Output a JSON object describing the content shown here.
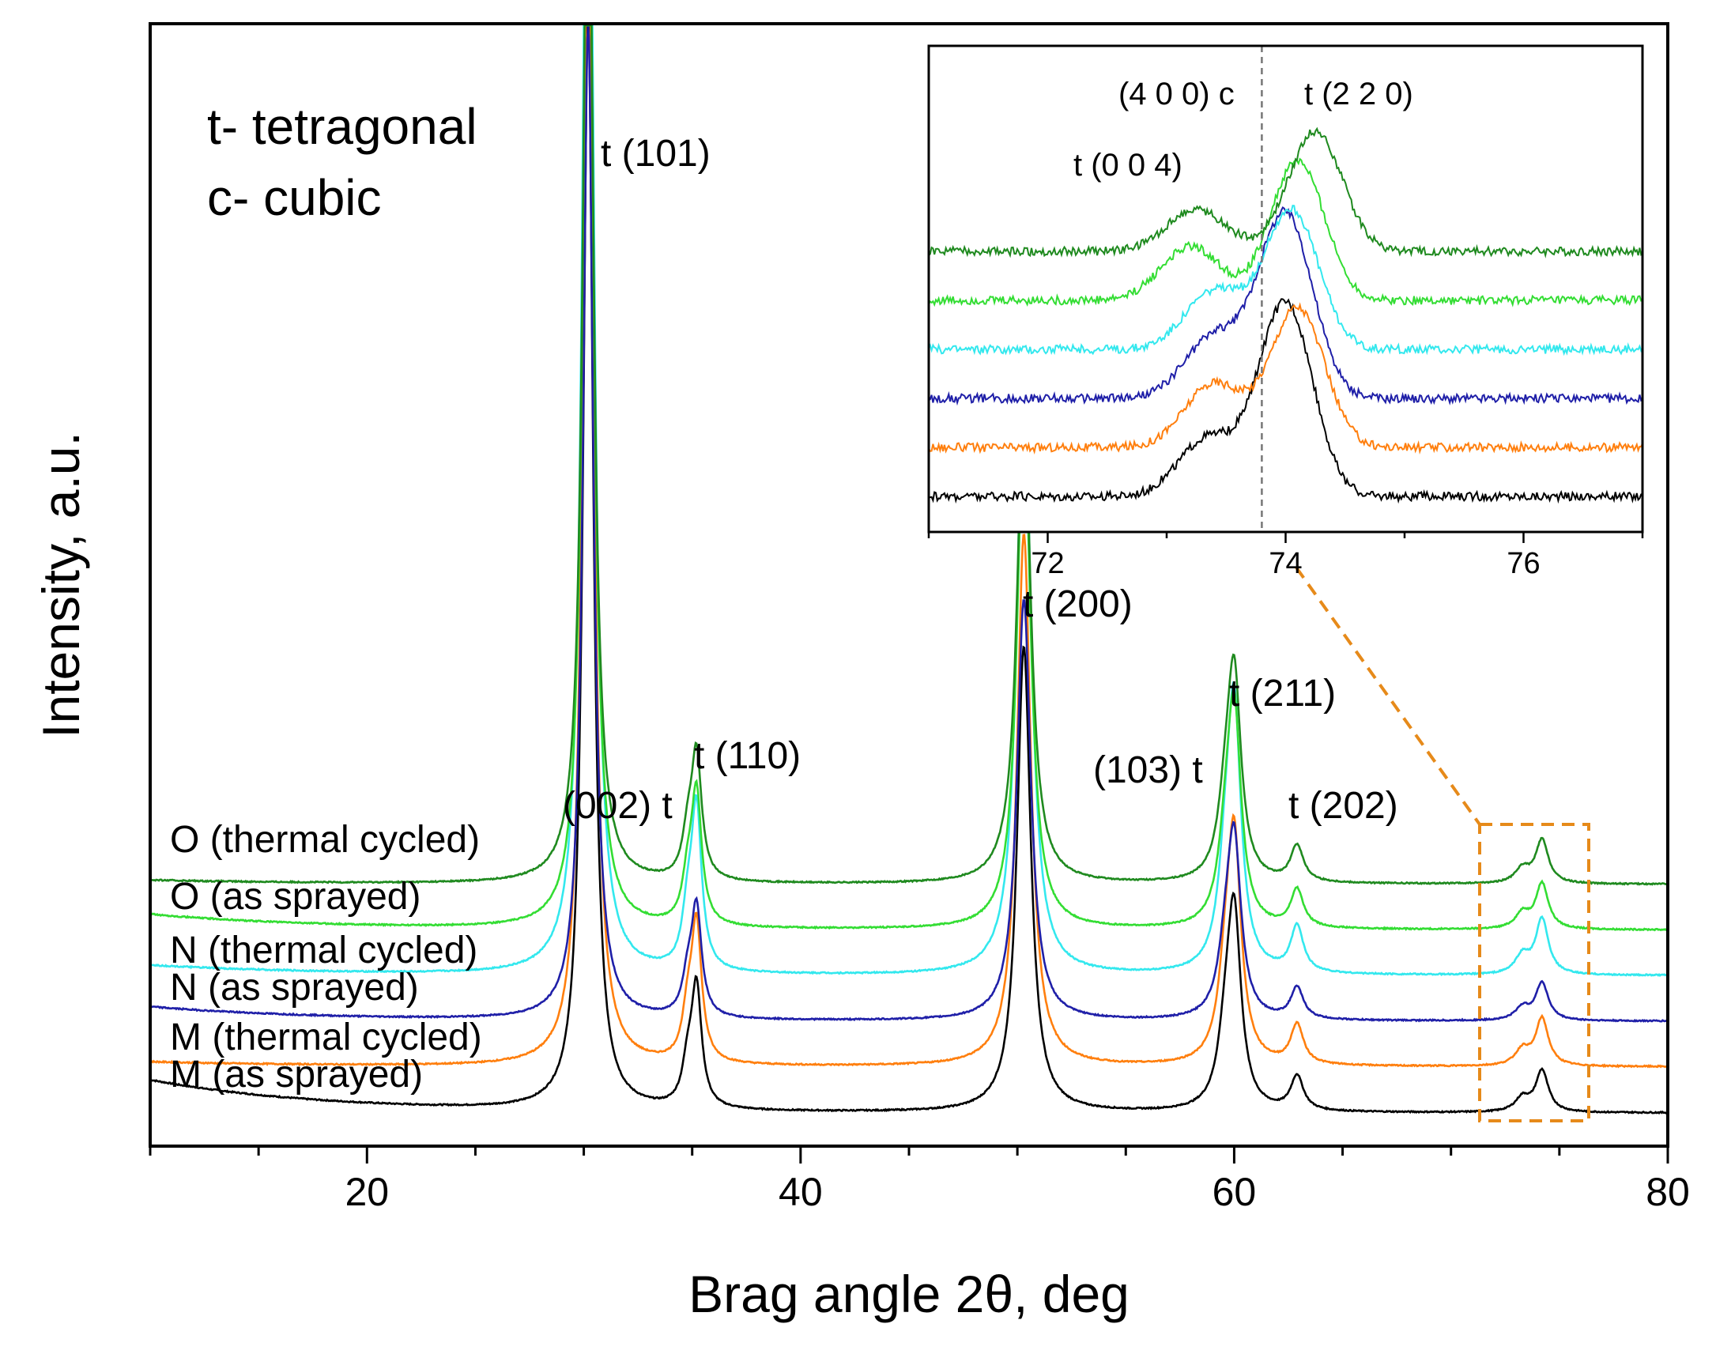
{
  "chart_data": [
    {
      "id": "main",
      "type": "line",
      "xlabel": "Brag angle 2θ, deg",
      "ylabel": "Intensity, a.u.",
      "xlim": [
        10,
        80
      ],
      "xticks": [
        20,
        40,
        60,
        80
      ],
      "grid": false,
      "legend_placement": "left, stacked labels beside each trace",
      "note_lines": [
        "t- tetragonal",
        "c- cubic"
      ],
      "series": [
        {
          "name": "M (as sprayed)",
          "color": "#000000",
          "offset": 0.0,
          "start_level": 0.08,
          "baseline": 0.0,
          "peak_scale": 0.84,
          "noise": 0.0008
        },
        {
          "name": "M (thermal cycled)",
          "color": "#ff7f0e",
          "offset": 0.112,
          "start_level": 0.012,
          "baseline": 0.0,
          "peak_scale": 0.96,
          "noise": 0.0008
        },
        {
          "name": "N (as sprayed)",
          "color": "#1f1fa8",
          "offset": 0.223,
          "start_level": 0.035,
          "baseline": 0.0,
          "peak_scale": 0.76,
          "noise": 0.0008
        },
        {
          "name": "N (thermal cycled)",
          "color": "#33e8ee",
          "offset": 0.334,
          "start_level": 0.025,
          "baseline": 0.0,
          "peak_scale": 1.12,
          "noise": 0.0008
        },
        {
          "name": "O (as sprayed)",
          "color": "#33dd33",
          "offset": 0.445,
          "start_level": 0.038,
          "baseline": 0.0,
          "peak_scale": 0.92,
          "noise": 0.0008
        },
        {
          "name": "O (thermal cycled)",
          "color": "#1f8a1f",
          "offset": 0.556,
          "start_level": 0.01,
          "baseline": 0.0,
          "peak_scale": 0.88,
          "noise": 0.0008
        }
      ],
      "peaks": [
        {
          "label": "t (101)",
          "x": 30.2,
          "height": 3.2,
          "width": 0.28
        },
        {
          "label": "(002) t",
          "x": 34.8,
          "height": 0.11,
          "width": 0.3
        },
        {
          "label": "t (110)",
          "x": 35.2,
          "height": 0.34,
          "width": 0.28
        },
        {
          "label": "t (200)",
          "x": 50.3,
          "height": 1.35,
          "width": 0.38
        },
        {
          "label": "(103) t",
          "x": 59.6,
          "height": 0.16,
          "width": 0.4
        },
        {
          "label": "t (211)",
          "x": 60.0,
          "height": 0.55,
          "width": 0.38
        },
        {
          "label": "t (202)",
          "x": 62.9,
          "height": 0.1,
          "width": 0.35
        },
        {
          "label": "",
          "x": 73.3,
          "height": 0.04,
          "width": 0.4
        },
        {
          "label": "",
          "x": 74.2,
          "height": 0.12,
          "width": 0.35
        }
      ],
      "inset_region": {
        "x_range": [
          71.5,
          76.5
        ]
      }
    },
    {
      "id": "inset",
      "type": "line",
      "xlabel": "",
      "ylabel": "",
      "xlim": [
        71,
        77
      ],
      "xticks": [
        72,
        74,
        76
      ],
      "grid": false,
      "reference_line": {
        "label": "(4 0 0) c",
        "x": 73.8
      },
      "annotations": [
        {
          "label": "t (0 0 4)",
          "x": 73.3
        },
        {
          "label": "t (2 2 0)",
          "x": 74.2
        }
      ],
      "series": [
        {
          "name": "M (as sprayed)",
          "color": "#000000",
          "p004": {
            "x": 73.35,
            "h": 0.3
          },
          "p220": {
            "x": 74.0,
            "h": 1.0
          }
        },
        {
          "name": "M (thermal cycled)",
          "color": "#ff7f0e",
          "p004": {
            "x": 73.4,
            "h": 0.33
          },
          "p220": {
            "x": 74.1,
            "h": 0.72
          }
        },
        {
          "name": "N (as sprayed)",
          "color": "#1f1fa8",
          "p004": {
            "x": 73.4,
            "h": 0.32
          },
          "p220": {
            "x": 74.0,
            "h": 0.95
          }
        },
        {
          "name": "N (thermal cycled)",
          "color": "#33e8ee",
          "p004": {
            "x": 73.4,
            "h": 0.3
          },
          "p220": {
            "x": 74.05,
            "h": 0.72
          }
        },
        {
          "name": "O (as sprayed)",
          "color": "#33dd33",
          "p004": {
            "x": 73.2,
            "h": 0.28
          },
          "p220": {
            "x": 74.1,
            "h": 0.72
          }
        },
        {
          "name": "O (thermal cycled)",
          "color": "#1f8a1f",
          "p004": {
            "x": 73.25,
            "h": 0.22
          },
          "p220": {
            "x": 74.25,
            "h": 0.62
          }
        }
      ]
    }
  ]
}
